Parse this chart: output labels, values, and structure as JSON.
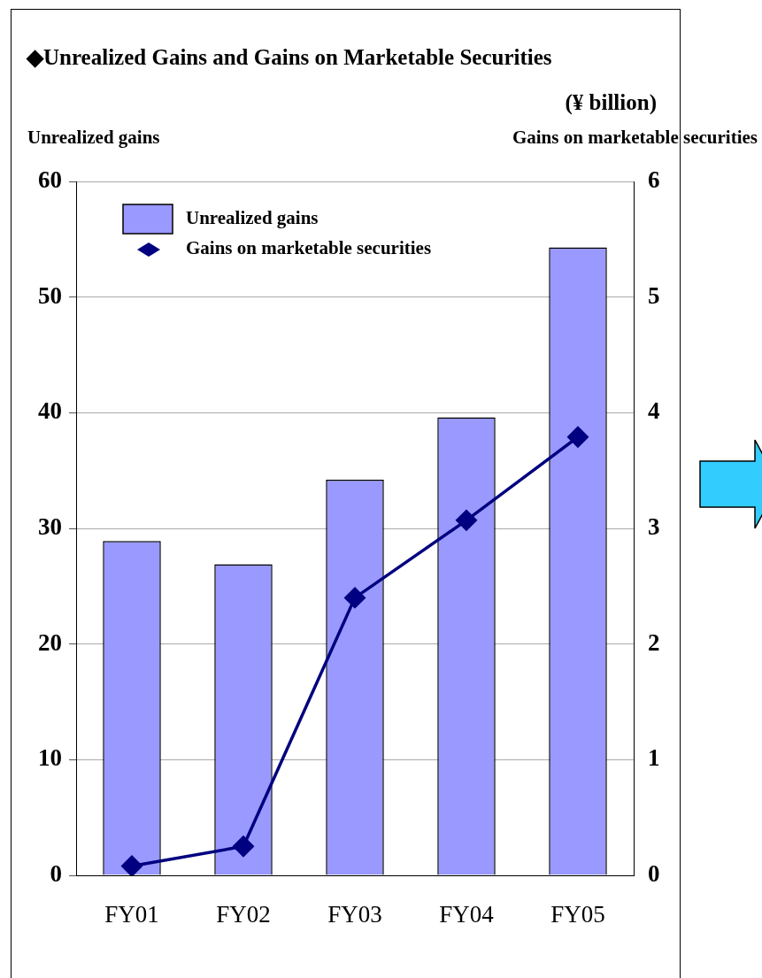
{
  "chart_data": {
    "type": "bar",
    "title": "◆Unrealized Gains and Gains on Marketable Securities",
    "annotations": [
      "(¥ billion)"
    ],
    "ylabel": "Unrealized gains",
    "y2label": "Gains on marketable securities",
    "categories": [
      "FY01",
      "FY02",
      "FY03",
      "FY04",
      "FY05"
    ],
    "series": [
      {
        "name": "Unrealized gains",
        "color": "#9999ff",
        "values": [
          28.9,
          26.9,
          34.2,
          39.6,
          54.3
        ]
      },
      {
        "name": "Gains on marketable securities",
        "type": "line",
        "axis": "y2",
        "color": "#000080",
        "marker": "diamond",
        "values": [
          0.08,
          0.25,
          2.4,
          3.07,
          3.79
        ]
      }
    ],
    "ylim": [
      0,
      60
    ],
    "yticks": [
      0,
      10,
      20,
      30,
      40,
      50,
      60
    ],
    "y2lim": [
      0,
      6
    ],
    "y2ticks": [
      0,
      1,
      2,
      3,
      4,
      5,
      6
    ],
    "grid": "y",
    "legend": "top left"
  }
}
